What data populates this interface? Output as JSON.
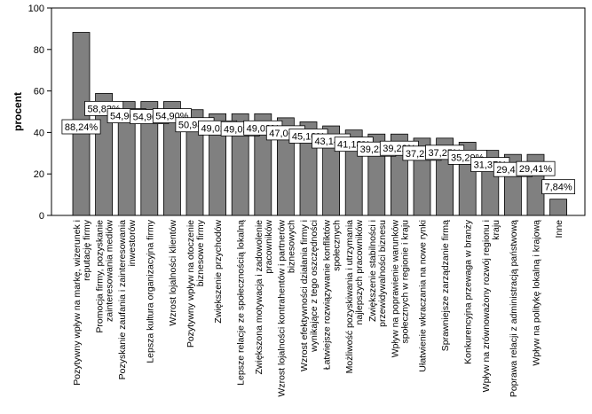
{
  "chart_data": {
    "type": "bar",
    "ylabel": "procent",
    "xlabel": "",
    "ylim": [
      0,
      100
    ],
    "yticks": [
      0,
      20,
      40,
      60,
      80,
      100
    ],
    "grid": false,
    "bar_color": "#808080",
    "plot_bg": "#ffffff",
    "categories": [
      [
        "Pozytywny wpływ na markę, wizerunek i",
        "reputację firmy"
      ],
      [
        "Promocja firmy, pozyskanie",
        "zainteresowania mediów"
      ],
      [
        "Pozyskanie zaufania i zainteresowania",
        "inwestorów"
      ],
      [
        "Lepsza kultura organizacyjna firmy"
      ],
      [
        "Wzrost lojalności klientów"
      ],
      [
        "Pozytywny wpływ na otoczenie",
        "biznesowe firmy"
      ],
      [
        "Zwiększenie przychodów"
      ],
      [
        "Lepsze relacje ze społecznością lokalną"
      ],
      [
        "Zwiększona motywacja i zadowolenie",
        "pracowników"
      ],
      [
        "Wzrost lojalności kontrahentów i partnerów",
        "biznesowych"
      ],
      [
        "Wzrost efektywności działania firmy i",
        "wynikające z tego oszczędności"
      ],
      [
        "Łatwiejsze rozwiązywanie konfliktów",
        "społecznych"
      ],
      [
        "Możliwość pozyskiwania i utrzymania",
        "najlepszych pracowników"
      ],
      [
        "Zwiększenie stabilności i",
        "przewidywalności biznesu"
      ],
      [
        "Wpływ na poprawienie warunków",
        "społecznych w regionie i kraju"
      ],
      [
        "Ułatwienie wkraczania na nowe rynki"
      ],
      [
        "Sprawniejsze zarządzanie firmą"
      ],
      [
        "Konkurencyjna przewaga w branży"
      ],
      [
        "Wpływ na zrównoważony rozwój regionu i",
        "kraju"
      ],
      [
        "Poprawa relacji z administracją państwową"
      ],
      [
        "Wpływ na politykę lokalną i krajową"
      ],
      [
        "Inne"
      ]
    ],
    "values": [
      88.24,
      58.82,
      54.9,
      54.9,
      54.9,
      50.98,
      49.02,
      49.02,
      49.02,
      47.06,
      45.1,
      43.14,
      41.18,
      39.22,
      39.22,
      37.25,
      37.25,
      35.29,
      31.37,
      29.41,
      29.41,
      7.84
    ],
    "data_labels": [
      "88,24%",
      "58,82%",
      "54,90%",
      "54,90%",
      "54,90%",
      "50,98%",
      "49,02%",
      "49,02%",
      "49,02%",
      "47,06%",
      "45,10%",
      "43,14%",
      "41,18%",
      "39,22%",
      "39,22%",
      "37,25%",
      "37,25%",
      "35,29%",
      "31,37%",
      "29,41%",
      "29,41%",
      "7,84%"
    ]
  }
}
